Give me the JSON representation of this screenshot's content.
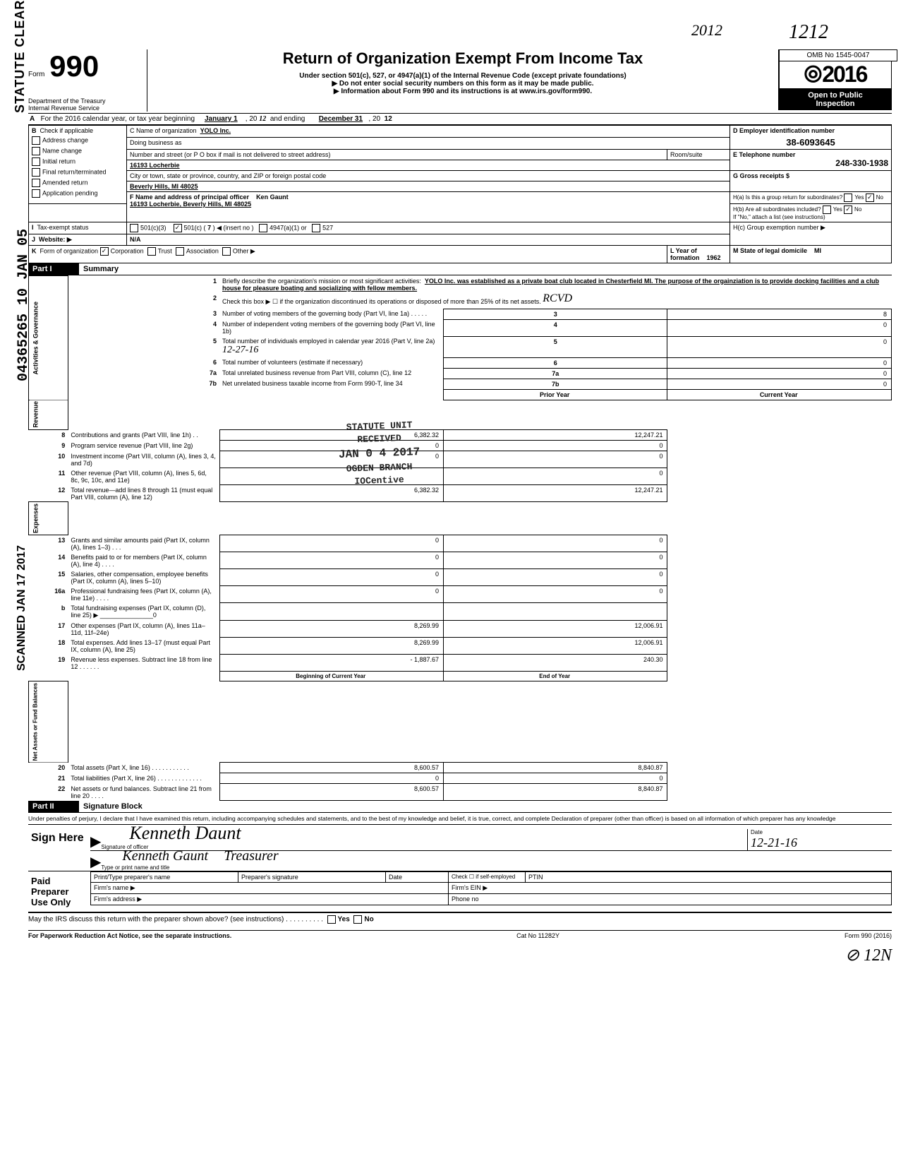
{
  "handwritten_top_year": "2012",
  "handwritten_top_right": "1212",
  "vertical_statute": "STATUTE CLEARED",
  "vertical_number": "04365265 10 JAN 05",
  "vertical_scanned": "SCANNED JAN 17 2017",
  "form_label": "Form",
  "form_number": "990",
  "main_title": "Return of Organization Exempt From Income Tax",
  "sub_title_1": "Under section 501(c), 527, or 4947(a)(1) of the Internal Revenue Code (except private foundations)",
  "sub_title_2": "▶ Do not enter social security numbers on this form as it may be made public.",
  "sub_title_3": "▶ Information about Form 990 and its instructions is at www.irs.gov/form990.",
  "dept": "Department of the Treasury",
  "irs": "Internal Revenue Service",
  "omb": "OMB No  1545-0047",
  "tax_year_big": "2016",
  "open_public_1": "Open to Public",
  "open_public_2": "Inspection",
  "line_a": "For the 2016 calendar year, or tax year beginning",
  "line_a_month": "January 1",
  "line_a_mid": ", 20",
  "line_a_hand1": "12",
  "line_a_end": "and ending",
  "line_a_dec": "December 31",
  "line_a_end2": ", 20",
  "line_a_hand2": "12",
  "b_label": "B",
  "b_check": "Check if applicable",
  "b_items": [
    "Address change",
    "Name change",
    "Initial return",
    "Final return/terminated",
    "Amended return",
    "Application pending"
  ],
  "c_label": "C Name of organization",
  "c_name": "YOLO Inc.",
  "c_dba": "Doing business as",
  "c_street_label": "Number and street (or P O  box if mail is not delivered to street address)",
  "c_street": "16193 Locherbie",
  "c_room": "Room/suite",
  "c_city_label": "City or town, state or province, country, and ZIP or foreign postal code",
  "c_city": "Beverly Hills, MI 48025",
  "d_label": "D Employer identification number",
  "d_ein": "38-6093645",
  "e_label": "E Telephone number",
  "e_phone": "248-330-1938",
  "f_label": "F Name and address of principal officer",
  "f_name": "Ken Gaunt",
  "f_addr": "16193 Locherbie, Beverly Hills, MI 48025",
  "g_label": "G Gross receipts $",
  "h_a": "H(a) Is this a group return for subordinates?",
  "h_b": "H(b) Are all subordinates included?",
  "h_no_note": "If \"No,\" attach a list  (see instructions)",
  "h_c": "H(c) Group exemption number ▶",
  "yes": "Yes",
  "no": "No",
  "i_label": "Tax-exempt status",
  "i_501c3": "501(c)(3)",
  "i_501c": "501(c) (",
  "i_insert_num": "7",
  "i_insert": ") ◀ (insert no )",
  "i_4947": "4947(a)(1) or",
  "i_527": "527",
  "j_label": "Website: ▶",
  "j_val": "N/A",
  "k_label": "Form of organization",
  "k_corp": "Corporation",
  "k_trust": "Trust",
  "k_assoc": "Association",
  "k_other": "Other ▶",
  "l_label": "L Year of formation",
  "l_val": "1962",
  "m_label": "M State of legal domicile",
  "m_val": "MI",
  "part1": "Part I",
  "part1_title": "Summary",
  "sec_activities": "Activities & Governance",
  "sec_revenue": "Revenue",
  "sec_expenses": "Expenses",
  "sec_net": "Net Assets or\nFund Balances",
  "line1_label": "Briefly describe the organization's mission or most significant activities:",
  "line1_text": "YOLO Inc. was established as a private boat club located in Chesterfield MI.  The purpose of the orgainziation is to provide docking facilities and a club house for pleasure boating and socializing with fellow members.",
  "line2": "Check this box ▶ ☐ if the organization discontinued its operations or disposed of more than 25% of its net assets.",
  "line2_hand": "RCVD",
  "line3": "Number of voting members of the governing body (Part VI, line 1a) .    .    .    .    .",
  "line4": "Number of independent voting members of the governing body (Part VI, line 1b)",
  "line5": "Total number of individuals employed in calendar year 2016 (Part V, line 2a)",
  "line5_hand": "12-27-16",
  "line6": "Total number of volunteers (estimate if necessary)",
  "line7a": "Total unrelated business revenue from Part VIII, column (C), line 12",
  "line7b": "Net unrelated business taxable income from Form 990-T, line 34",
  "stamp_ogden": "STATUTE UNIT",
  "stamp_received": "RECEIVED",
  "stamp_date": "JAN 0 4 2017",
  "stamp_branch": "OGDEN BRANCH",
  "stamp_iocent": "IOCentive",
  "prior_year": "Prior Year",
  "current_year": "Current Year",
  "lines_rev": [
    {
      "n": "8",
      "label": "Contributions and grants (Part VIII, line 1h) .   .",
      "prior": "6,382.32",
      "curr": "12,247.21"
    },
    {
      "n": "9",
      "label": "Program service revenue (Part VIII, line 2g)",
      "prior": "0",
      "curr": "0"
    },
    {
      "n": "10",
      "label": "Investment income (Part VIII, column (A), lines 3, 4, and 7d)",
      "prior": "0",
      "curr": "0"
    },
    {
      "n": "11",
      "label": "Other revenue (Part VIII, column (A), lines 5, 6d, 8c, 9c, 10c, and 11e)",
      "prior": "",
      "curr": "0"
    },
    {
      "n": "12",
      "label": "Total revenue—add lines 8 through 11 (must equal Part VIII, column (A), line 12)",
      "prior": "6,382.32",
      "curr": "12,247.21"
    }
  ],
  "lines_exp": [
    {
      "n": "13",
      "label": "Grants and similar amounts paid (Part IX, column (A), lines 1–3) .   .   .",
      "prior": "0",
      "curr": "0"
    },
    {
      "n": "14",
      "label": "Benefits paid to or for members (Part IX, column (A), line 4)    .    .    .    .",
      "prior": "0",
      "curr": "0"
    },
    {
      "n": "15",
      "label": "Salaries, other compensation, employee benefits (Part IX, column (A), lines 5–10)",
      "prior": "0",
      "curr": "0"
    },
    {
      "n": "16a",
      "label": "Professional fundraising fees (Part IX, column (A), line 11e)   .    .    .    .",
      "prior": "0",
      "curr": "0"
    },
    {
      "n": "b",
      "label": "Total fundraising expenses (Part IX, column (D), line 25) ▶  _______________0",
      "prior": "",
      "curr": ""
    },
    {
      "n": "17",
      "label": "Other expenses (Part IX, column (A), lines 11a–11d, 11f–24e)",
      "prior": "8,269.99",
      "curr": "12,006.91"
    },
    {
      "n": "18",
      "label": "Total expenses. Add lines 13–17 (must equal Part IX, column (A), line 25)",
      "prior": "8,269.99",
      "curr": "12,006.91"
    },
    {
      "n": "19",
      "label": "Revenue less expenses. Subtract line 18 from line 12   .    .    .    .    .    .",
      "prior": "- 1,887.67",
      "curr": "240.30"
    }
  ],
  "begin_year": "Beginning of Current Year",
  "end_year": "End of Year",
  "lines_net": [
    {
      "n": "20",
      "label": "Total assets (Part X, line 16)     .     .     .     .      .     .     .     .     .     .     .",
      "prior": "8,600.57",
      "curr": "8,840.87"
    },
    {
      "n": "21",
      "label": "Total liabilities (Part X, line 26) .    .    .    .    .    .    .    .    .    .    .    .    .",
      "prior": "0",
      "curr": "0"
    },
    {
      "n": "22",
      "label": "Net assets or fund balances. Subtract line 21 from line 20      .     .     .     .",
      "prior": "8,600.57",
      "curr": "8,840.87"
    }
  ],
  "gov_vals": {
    "3": "8",
    "4": "0",
    "5": "0",
    "6": "0",
    "7a": "0",
    "7b": "0"
  },
  "part2": "Part II",
  "part2_title": "Signature Block",
  "perjury": "Under penalties of perjury, I declare that I have examined this return, including accompanying schedules and statements, and to the best of my knowledge  and belief, it is true, correct, and complete  Declaration of preparer (other than officer) is based on all information of which preparer has any knowledge",
  "sign_here": "Sign Here",
  "sig_officer": "Signature of officer",
  "sig_name_handwritten": "Kenneth Daunt",
  "sig_date_label": "Date",
  "sig_date": "12-21-16",
  "type_name_label": "Type or print name and title",
  "type_name": "Kenneth Gaunt",
  "type_title_hand": "Treasurer",
  "paid_preparer": "Paid Preparer Use Only",
  "prep_name": "Print/Type preparer's name",
  "prep_sig": "Preparer's signature",
  "prep_date": "Date",
  "prep_check": "Check ☐ if self-employed",
  "prep_ptin": "PTIN",
  "firm_name": "Firm's name    ▶",
  "firm_ein": "Firm's EIN ▶",
  "firm_addr": "Firm's address ▶",
  "firm_phone": "Phone no",
  "discuss": "May the IRS discuss this return with the preparer shown above? (see instructions)    .    .    .    .    .    .    .    .    .    .",
  "footer_left": "For Paperwork Reduction Act Notice, see the separate instructions.",
  "footer_mid": "Cat  No  11282Y",
  "footer_right": "Form 990 (2016)",
  "bottom_hand": "12N"
}
